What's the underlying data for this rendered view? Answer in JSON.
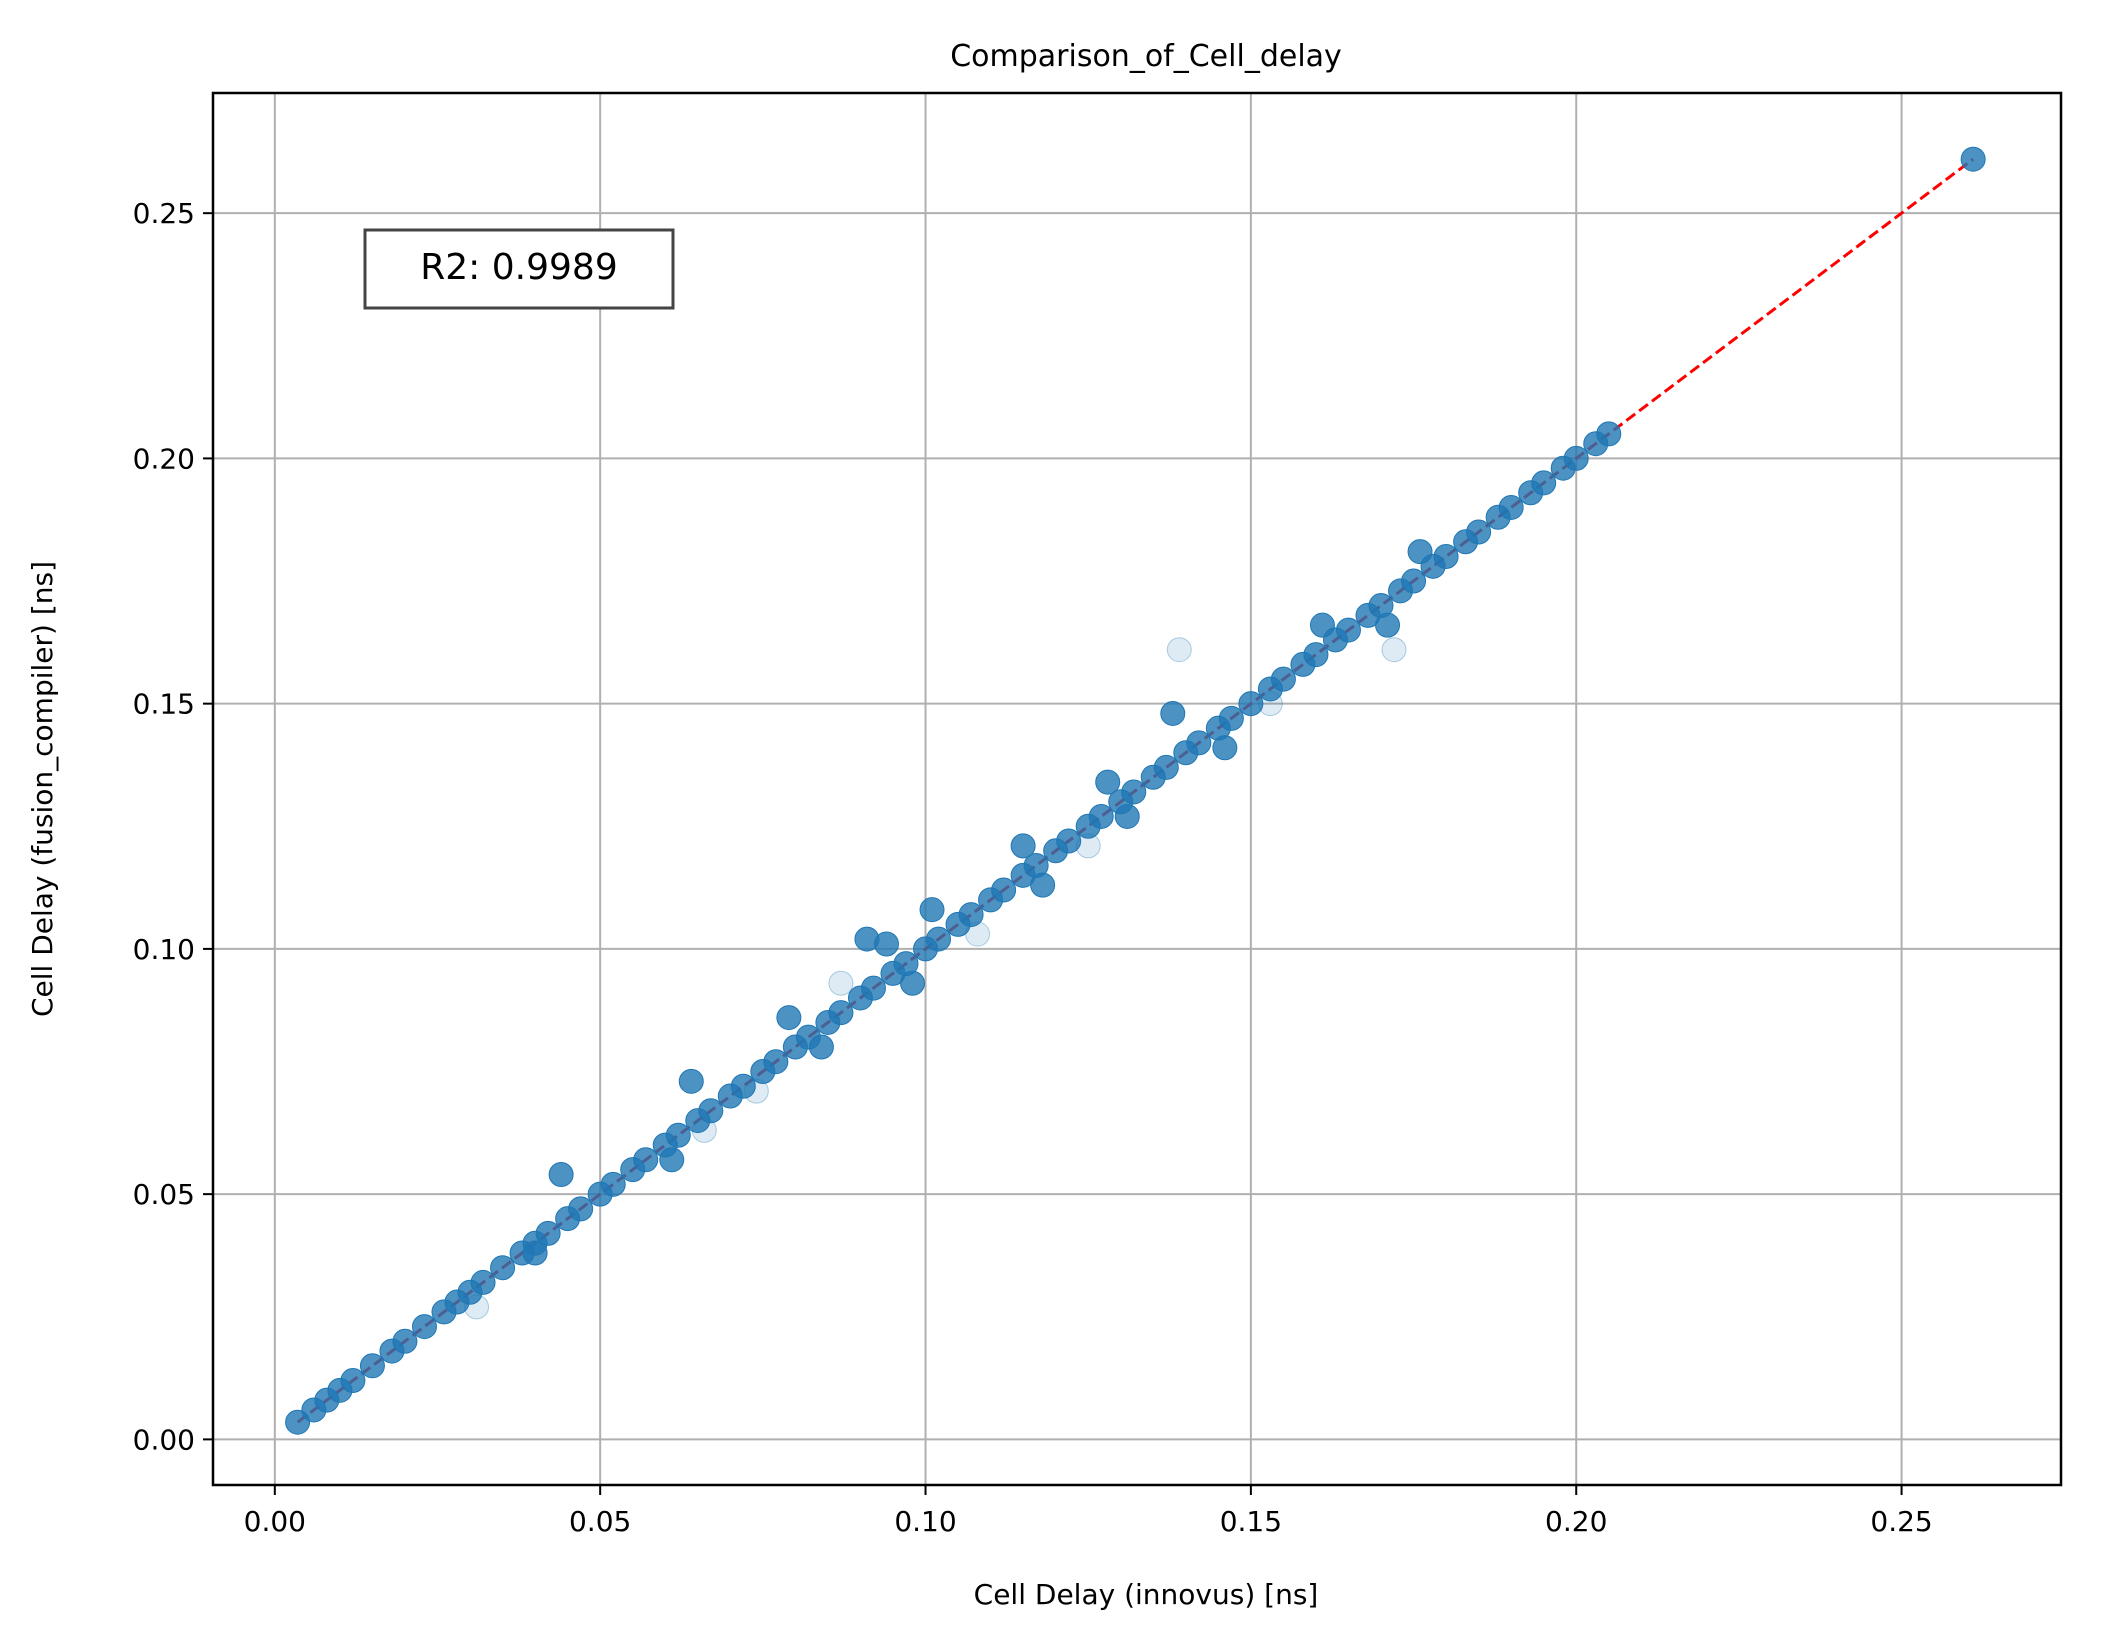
{
  "chart_data": {
    "type": "scatter",
    "title": "Comparison_of_Cell_delay",
    "xlabel": "Cell Delay (innovus) [ns]",
    "ylabel": "Cell Delay (fusion_compiler) [ns]",
    "xlim": [
      -0.0095,
      0.2745
    ],
    "ylim": [
      -0.0093,
      0.2745
    ],
    "xticks": [
      0.0,
      0.05,
      0.1,
      0.15,
      0.2,
      0.25
    ],
    "xtick_labels": [
      "0.00",
      "0.05",
      "0.10",
      "0.15",
      "0.20",
      "0.25"
    ],
    "yticks": [
      0.0,
      0.05,
      0.1,
      0.15,
      0.2,
      0.25
    ],
    "ytick_labels": [
      "0.00",
      "0.05",
      "0.10",
      "0.15",
      "0.20",
      "0.25"
    ],
    "grid": true,
    "annotation": "R2: 0.9989",
    "annotation_position": "top-left",
    "series": [
      {
        "color": "#1f77b4",
        "x": [
          0.0035,
          0.006,
          0.008,
          0.01,
          0.012,
          0.015,
          0.018,
          0.02,
          0.023,
          0.026,
          0.028,
          0.03,
          0.032,
          0.035,
          0.038,
          0.04,
          0.042,
          0.045,
          0.047,
          0.05,
          0.052,
          0.055,
          0.057,
          0.06,
          0.062,
          0.065,
          0.067,
          0.07,
          0.072,
          0.075,
          0.077,
          0.08,
          0.082,
          0.085,
          0.087,
          0.09,
          0.092,
          0.095,
          0.097,
          0.1,
          0.102,
          0.105,
          0.107,
          0.11,
          0.112,
          0.115,
          0.117,
          0.12,
          0.122,
          0.125,
          0.127,
          0.13,
          0.132,
          0.135,
          0.137,
          0.14,
          0.142,
          0.145,
          0.147,
          0.15,
          0.153,
          0.155,
          0.158,
          0.16,
          0.163,
          0.165,
          0.168,
          0.17,
          0.173,
          0.175,
          0.178,
          0.18,
          0.183,
          0.185,
          0.188,
          0.19,
          0.193,
          0.195,
          0.198,
          0.2,
          0.203,
          0.205,
          0.261,
          0.044,
          0.064,
          0.079,
          0.091,
          0.094,
          0.101,
          0.115,
          0.128,
          0.138,
          0.161,
          0.176,
          0.04,
          0.061,
          0.084,
          0.098,
          0.118,
          0.131,
          0.146,
          0.171
        ],
        "y": [
          0.0035,
          0.006,
          0.008,
          0.01,
          0.012,
          0.015,
          0.018,
          0.02,
          0.023,
          0.026,
          0.028,
          0.03,
          0.032,
          0.035,
          0.038,
          0.04,
          0.042,
          0.045,
          0.047,
          0.05,
          0.052,
          0.055,
          0.057,
          0.06,
          0.062,
          0.065,
          0.067,
          0.07,
          0.072,
          0.075,
          0.077,
          0.08,
          0.082,
          0.085,
          0.087,
          0.09,
          0.092,
          0.095,
          0.097,
          0.1,
          0.102,
          0.105,
          0.107,
          0.11,
          0.112,
          0.115,
          0.117,
          0.12,
          0.122,
          0.125,
          0.127,
          0.13,
          0.132,
          0.135,
          0.137,
          0.14,
          0.142,
          0.145,
          0.147,
          0.15,
          0.153,
          0.155,
          0.158,
          0.16,
          0.163,
          0.165,
          0.168,
          0.17,
          0.173,
          0.175,
          0.178,
          0.18,
          0.183,
          0.185,
          0.188,
          0.19,
          0.193,
          0.195,
          0.198,
          0.2,
          0.203,
          0.205,
          0.261,
          0.054,
          0.073,
          0.086,
          0.102,
          0.101,
          0.108,
          0.121,
          0.134,
          0.148,
          0.166,
          0.181,
          0.038,
          0.057,
          0.08,
          0.093,
          0.113,
          0.127,
          0.141,
          0.166
        ]
      },
      {
        "color": "#1f77b4",
        "alpha": 0.15,
        "x": [
          0.139,
          0.172,
          0.087,
          0.074,
          0.153,
          0.108,
          0.066,
          0.125,
          0.031
        ],
        "y": [
          0.161,
          0.161,
          0.093,
          0.071,
          0.15,
          0.103,
          0.063,
          0.121,
          0.027
        ]
      }
    ],
    "reference_line": {
      "color": "#ff0000",
      "style": "dashed",
      "x": [
        0.0035,
        0.261
      ],
      "y": [
        0.0035,
        0.261
      ]
    }
  }
}
